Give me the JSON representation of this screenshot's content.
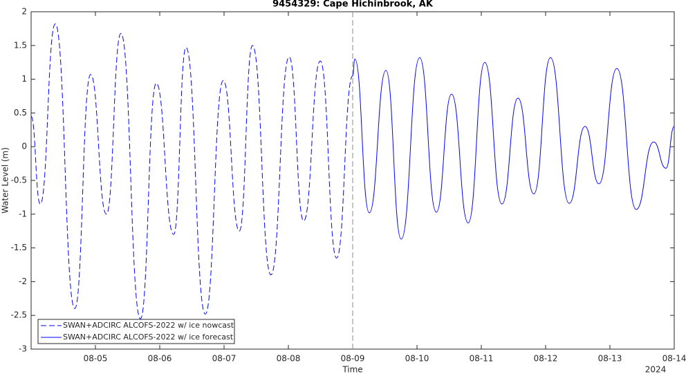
{
  "chart_data": {
    "type": "line",
    "title": "9454329: Cape Hichinbrook, AK",
    "xlabel": "Time",
    "ylabel": "Water Level (m)",
    "x_year_label": "2024",
    "xlim": [
      "2024-08-04",
      "2024-08-14"
    ],
    "xticks": [
      {
        "value": "2024-08-05",
        "label": "08-05"
      },
      {
        "value": "2024-08-06",
        "label": "08-06"
      },
      {
        "value": "2024-08-07",
        "label": "08-07"
      },
      {
        "value": "2024-08-08",
        "label": "08-08"
      },
      {
        "value": "2024-08-09",
        "label": "08-09"
      },
      {
        "value": "2024-08-10",
        "label": "08-10"
      },
      {
        "value": "2024-08-11",
        "label": "08-11"
      },
      {
        "value": "2024-08-12",
        "label": "08-12"
      },
      {
        "value": "2024-08-13",
        "label": "08-13"
      },
      {
        "value": "2024-08-14",
        "label": "08-14"
      }
    ],
    "ylim": [
      -3,
      2
    ],
    "yticks": [
      -3,
      -2.5,
      -2,
      -1.5,
      -1,
      -0.5,
      0,
      0.5,
      1,
      1.5,
      2
    ],
    "vline": "2024-08-09",
    "grid": false,
    "legend": "lower left",
    "series": [
      {
        "name": "SWAN+ADCIRC ALCOFS-2022 w/ ice nowcast",
        "color": "#0000ff",
        "dash": true,
        "x": [
          "2024-08-04T00:00",
          "2024-08-04T03:24",
          "2024-08-04T09:00",
          "2024-08-04T16:18",
          "2024-08-04T22:12",
          "2024-08-05T04:06",
          "2024-08-05T09:30",
          "2024-08-05T16:48",
          "2024-08-05T22:42",
          "2024-08-06T05:12",
          "2024-08-06T09:48",
          "2024-08-06T17:00",
          "2024-08-06T23:42",
          "2024-08-07T05:42",
          "2024-08-07T10:36",
          "2024-08-07T17:30",
          "2024-08-08T00:18",
          "2024-08-08T05:42",
          "2024-08-08T11:54",
          "2024-08-08T18:00",
          "2024-08-09T00:00"
        ],
        "values": [
          0.45,
          -0.85,
          1.82,
          -2.4,
          1.07,
          -1.0,
          1.68,
          -2.55,
          0.94,
          -1.3,
          1.47,
          -2.48,
          0.98,
          -1.25,
          1.5,
          -1.9,
          1.33,
          -1.1,
          1.27,
          -1.65,
          1.05
        ]
      },
      {
        "name": "SWAN+ADCIRC ALCOFS-2022 w/ ice forecast",
        "color": "#0000ff",
        "dash": false,
        "x": [
          "2024-08-09T00:00",
          "2024-08-09T00:48",
          "2024-08-09T06:12",
          "2024-08-09T12:24",
          "2024-08-09T18:06",
          "2024-08-10T01:00",
          "2024-08-10T07:12",
          "2024-08-10T12:54",
          "2024-08-10T19:06",
          "2024-08-11T01:18",
          "2024-08-11T07:42",
          "2024-08-11T13:42",
          "2024-08-11T19:36",
          "2024-08-12T01:48",
          "2024-08-12T08:48",
          "2024-08-12T14:42",
          "2024-08-12T19:54",
          "2024-08-13T02:36",
          "2024-08-13T09:48",
          "2024-08-13T16:18",
          "2024-08-13T20:54",
          "2024-08-14T00:00"
        ],
        "values": [
          1.05,
          1.3,
          -0.98,
          1.13,
          -1.37,
          1.32,
          -0.97,
          0.78,
          -1.13,
          1.25,
          -0.85,
          0.72,
          -0.7,
          1.32,
          -0.84,
          0.3,
          -0.55,
          1.16,
          -0.93,
          0.07,
          -0.32,
          0.3
        ]
      }
    ]
  }
}
